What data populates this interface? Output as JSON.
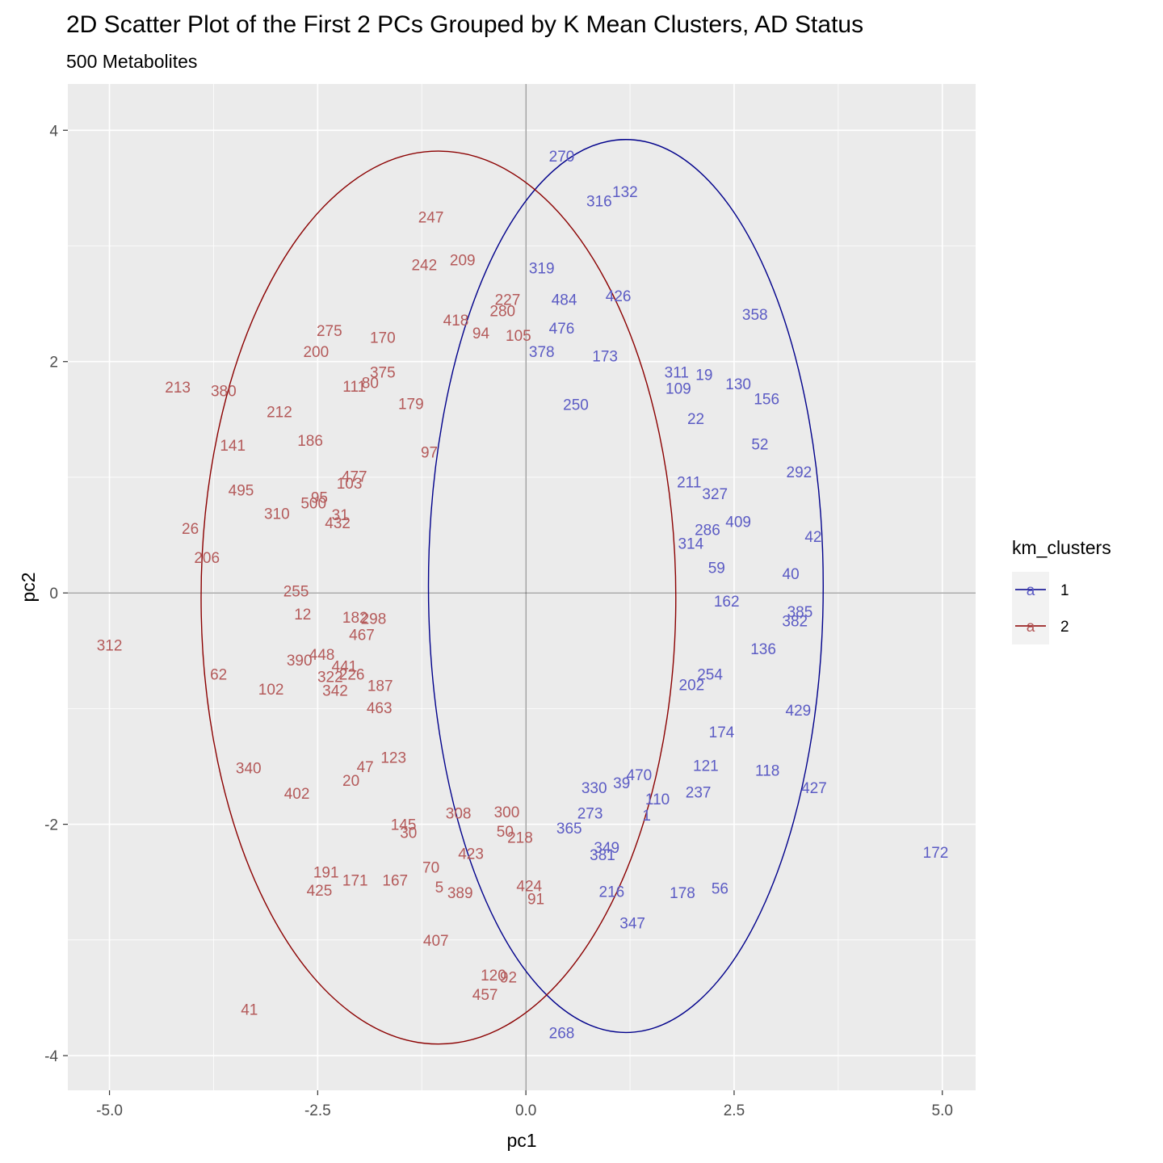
{
  "chart_data": {
    "type": "scatter",
    "title": "2D Scatter Plot of the First 2 PCs Grouped by K Mean Clusters, AD Status",
    "subtitle": "500 Metabolites",
    "xlabel": "pc1",
    "ylabel": "pc2",
    "xlim": [
      -5.5,
      5.4
    ],
    "ylim": [
      -4.3,
      4.4
    ],
    "x_ticks": [
      -5.0,
      -2.5,
      0.0,
      2.5,
      5.0
    ],
    "x_tick_labels": [
      "-5.0",
      "-2.5",
      "0.0",
      "2.5",
      "5.0"
    ],
    "y_ticks": [
      -4,
      -2,
      0,
      2,
      4
    ],
    "y_tick_labels": [
      "-4",
      "-2",
      "0",
      "2",
      "4"
    ],
    "grid": true,
    "legend": {
      "title": "km_clusters",
      "position": "right",
      "key_glyph": "a",
      "entries": [
        {
          "label": "1",
          "color": "#00008B"
        },
        {
          "label": "2",
          "color": "#8B0000"
        }
      ]
    },
    "ellipses": [
      {
        "cluster": "1",
        "cx": 1.2,
        "cy": 0.06,
        "rx": 2.37,
        "ry": 3.86,
        "color": "#00008B"
      },
      {
        "cluster": "2",
        "cx": -1.05,
        "cy": -0.04,
        "rx": 2.85,
        "ry": 3.86,
        "color": "#8B0000"
      }
    ],
    "series": [
      {
        "name": "1",
        "color": "#5B5BC4",
        "points": [
          {
            "label": "270",
            "x": 0.43,
            "y": 3.78
          },
          {
            "label": "132",
            "x": 1.19,
            "y": 3.47
          },
          {
            "label": "316",
            "x": 0.88,
            "y": 3.39
          },
          {
            "label": "319",
            "x": 0.19,
            "y": 2.81
          },
          {
            "label": "426",
            "x": 1.11,
            "y": 2.57
          },
          {
            "label": "484",
            "x": 0.46,
            "y": 2.54
          },
          {
            "label": "358",
            "x": 2.75,
            "y": 2.41
          },
          {
            "label": "476",
            "x": 0.43,
            "y": 2.29
          },
          {
            "label": "378",
            "x": 0.19,
            "y": 2.09
          },
          {
            "label": "173",
            "x": 0.95,
            "y": 2.05
          },
          {
            "label": "311",
            "x": 1.81,
            "y": 1.91
          },
          {
            "label": "19",
            "x": 2.14,
            "y": 1.89
          },
          {
            "label": "130",
            "x": 2.55,
            "y": 1.81
          },
          {
            "label": "109",
            "x": 1.83,
            "y": 1.77
          },
          {
            "label": "156",
            "x": 2.89,
            "y": 1.68
          },
          {
            "label": "250",
            "x": 0.6,
            "y": 1.63
          },
          {
            "label": "22",
            "x": 2.04,
            "y": 1.51
          },
          {
            "label": "52",
            "x": 2.81,
            "y": 1.29
          },
          {
            "label": "292",
            "x": 3.28,
            "y": 1.05
          },
          {
            "label": "211",
            "x": 1.96,
            "y": 0.96
          },
          {
            "label": "327",
            "x": 2.27,
            "y": 0.86
          },
          {
            "label": "409",
            "x": 2.55,
            "y": 0.62
          },
          {
            "label": "42",
            "x": 3.45,
            "y": 0.49
          },
          {
            "label": "286",
            "x": 2.18,
            "y": 0.55
          },
          {
            "label": "314",
            "x": 1.98,
            "y": 0.43
          },
          {
            "label": "59",
            "x": 2.29,
            "y": 0.22
          },
          {
            "label": "40",
            "x": 3.18,
            "y": 0.17
          },
          {
            "label": "162",
            "x": 2.41,
            "y": -0.07
          },
          {
            "label": "385",
            "x": 3.29,
            "y": -0.16
          },
          {
            "label": "382",
            "x": 3.23,
            "y": -0.24
          },
          {
            "label": "136",
            "x": 2.85,
            "y": -0.48
          },
          {
            "label": "254",
            "x": 2.21,
            "y": -0.7
          },
          {
            "label": "202",
            "x": 1.99,
            "y": -0.79
          },
          {
            "label": "429",
            "x": 3.27,
            "y": -1.01
          },
          {
            "label": "174",
            "x": 2.35,
            "y": -1.2
          },
          {
            "label": "118",
            "x": 2.9,
            "y": -1.53
          },
          {
            "label": "427",
            "x": 3.46,
            "y": -1.68
          },
          {
            "label": "237",
            "x": 2.07,
            "y": -1.72
          },
          {
            "label": "172",
            "x": 4.92,
            "y": -2.24
          },
          {
            "label": "178",
            "x": 1.88,
            "y": -2.59
          },
          {
            "label": "56",
            "x": 2.33,
            "y": -2.55
          },
          {
            "label": "216",
            "x": 1.03,
            "y": -2.58
          },
          {
            "label": "347",
            "x": 1.28,
            "y": -2.85
          },
          {
            "label": "268",
            "x": 0.43,
            "y": -3.8
          },
          {
            "label": "110",
            "x": 1.58,
            "y": -1.78
          },
          {
            "label": "1",
            "x": 1.45,
            "y": -1.92
          },
          {
            "label": "365",
            "x": 0.52,
            "y": -2.03
          },
          {
            "label": "349",
            "x": 0.97,
            "y": -2.2
          },
          {
            "label": "381",
            "x": 0.92,
            "y": -2.26
          },
          {
            "label": "273",
            "x": 0.77,
            "y": -1.9
          },
          {
            "label": "330",
            "x": 0.82,
            "y": -1.68
          },
          {
            "label": "39",
            "x": 1.15,
            "y": -1.64
          },
          {
            "label": "470",
            "x": 1.36,
            "y": -1.57
          },
          {
            "label": "121",
            "x": 2.16,
            "y": -1.49
          }
        ]
      },
      {
        "name": "2",
        "color": "#B45A5A",
        "points": [
          {
            "label": "247",
            "x": -1.14,
            "y": 3.25
          },
          {
            "label": "242",
            "x": -1.22,
            "y": 2.84
          },
          {
            "label": "209",
            "x": -0.76,
            "y": 2.88
          },
          {
            "label": "227",
            "x": -0.22,
            "y": 2.54
          },
          {
            "label": "280",
            "x": -0.28,
            "y": 2.44
          },
          {
            "label": "418",
            "x": -0.84,
            "y": 2.36
          },
          {
            "label": "94",
            "x": -0.54,
            "y": 2.25
          },
          {
            "label": "105",
            "x": -0.09,
            "y": 2.23
          },
          {
            "label": "275",
            "x": -2.36,
            "y": 2.27
          },
          {
            "label": "170",
            "x": -1.72,
            "y": 2.21
          },
          {
            "label": "200",
            "x": -2.52,
            "y": 2.09
          },
          {
            "label": "375",
            "x": -1.72,
            "y": 1.91
          },
          {
            "label": "80",
            "x": -1.87,
            "y": 1.82
          },
          {
            "label": "111",
            "x": -2.06,
            "y": 1.79
          },
          {
            "label": "213",
            "x": -4.18,
            "y": 1.78
          },
          {
            "label": "380",
            "x": -3.63,
            "y": 1.75
          },
          {
            "label": "212",
            "x": -2.96,
            "y": 1.57
          },
          {
            "label": "179",
            "x": -1.38,
            "y": 1.64
          },
          {
            "label": "186",
            "x": -2.59,
            "y": 1.32
          },
          {
            "label": "141",
            "x": -3.52,
            "y": 1.28
          },
          {
            "label": "97",
            "x": -1.16,
            "y": 1.22
          },
          {
            "label": "477",
            "x": -2.06,
            "y": 1.01
          },
          {
            "label": "103",
            "x": -2.12,
            "y": 0.95
          },
          {
            "label": "495",
            "x": -3.42,
            "y": 0.89
          },
          {
            "label": "95",
            "x": -2.48,
            "y": 0.83
          },
          {
            "label": "500",
            "x": -2.55,
            "y": 0.78
          },
          {
            "label": "310",
            "x": -2.99,
            "y": 0.69
          },
          {
            "label": "31",
            "x": -2.23,
            "y": 0.68
          },
          {
            "label": "432",
            "x": -2.26,
            "y": 0.61
          },
          {
            "label": "26",
            "x": -4.03,
            "y": 0.56
          },
          {
            "label": "206",
            "x": -3.83,
            "y": 0.31
          },
          {
            "label": "255",
            "x": -2.76,
            "y": 0.02
          },
          {
            "label": "12",
            "x": -2.68,
            "y": -0.18
          },
          {
            "label": "182",
            "x": -2.05,
            "y": -0.21
          },
          {
            "label": "298",
            "x": -1.83,
            "y": -0.22
          },
          {
            "label": "467",
            "x": -1.97,
            "y": -0.36
          },
          {
            "label": "312",
            "x": -5.0,
            "y": -0.45
          },
          {
            "label": "390",
            "x": -2.72,
            "y": -0.58
          },
          {
            "label": "448",
            "x": -2.45,
            "y": -0.53
          },
          {
            "label": "441",
            "x": -2.18,
            "y": -0.63
          },
          {
            "label": "62",
            "x": -3.69,
            "y": -0.7
          },
          {
            "label": "322",
            "x": -2.35,
            "y": -0.72
          },
          {
            "label": "226",
            "x": -2.09,
            "y": -0.7
          },
          {
            "label": "102",
            "x": -3.06,
            "y": -0.83
          },
          {
            "label": "342",
            "x": -2.29,
            "y": -0.84
          },
          {
            "label": "187",
            "x": -1.75,
            "y": -0.8
          },
          {
            "label": "463",
            "x": -1.76,
            "y": -0.99
          },
          {
            "label": "340",
            "x": -3.33,
            "y": -1.51
          },
          {
            "label": "47",
            "x": -1.93,
            "y": -1.5
          },
          {
            "label": "20",
            "x": -2.1,
            "y": -1.62
          },
          {
            "label": "123",
            "x": -1.59,
            "y": -1.42
          },
          {
            "label": "402",
            "x": -2.75,
            "y": -1.73
          },
          {
            "label": "145",
            "x": -1.47,
            "y": -2.0
          },
          {
            "label": "30",
            "x": -1.41,
            "y": -2.07
          },
          {
            "label": "191",
            "x": -2.4,
            "y": -2.41
          },
          {
            "label": "171",
            "x": -2.05,
            "y": -2.48
          },
          {
            "label": "167",
            "x": -1.57,
            "y": -2.48
          },
          {
            "label": "425",
            "x": -2.48,
            "y": -2.57
          },
          {
            "label": "70",
            "x": -1.14,
            "y": -2.37
          },
          {
            "label": "5",
            "x": -1.04,
            "y": -2.54
          },
          {
            "label": "389",
            "x": -0.79,
            "y": -2.59
          },
          {
            "label": "423",
            "x": -0.66,
            "y": -2.25
          },
          {
            "label": "300",
            "x": -0.23,
            "y": -1.89
          },
          {
            "label": "50",
            "x": -0.25,
            "y": -2.06
          },
          {
            "label": "218",
            "x": -0.07,
            "y": -2.11
          },
          {
            "label": "424",
            "x": 0.04,
            "y": -2.53
          },
          {
            "label": "91",
            "x": 0.12,
            "y": -2.64
          },
          {
            "label": "407",
            "x": -1.08,
            "y": -3.0
          },
          {
            "label": "120",
            "x": -0.39,
            "y": -3.3
          },
          {
            "label": "92",
            "x": -0.21,
            "y": -3.32
          },
          {
            "label": "457",
            "x": -0.49,
            "y": -3.47
          },
          {
            "label": "41",
            "x": -3.32,
            "y": -3.6
          },
          {
            "label": "308",
            "x": -0.81,
            "y": -1.9
          }
        ]
      }
    ]
  }
}
